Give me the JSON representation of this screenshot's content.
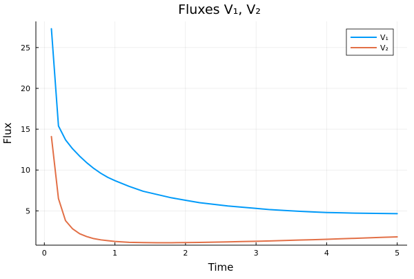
{
  "chart_data": {
    "type": "line",
    "title": "Fluxes V₁, V₂",
    "xlabel": "Time",
    "ylabel": "Flux",
    "xlim": [
      -0.12,
      5.14
    ],
    "ylim": [
      0.8,
      28.2
    ],
    "xticks": [
      0,
      1,
      2,
      3,
      4,
      5
    ],
    "yticks": [
      5,
      10,
      15,
      20,
      25
    ],
    "grid": true,
    "legend_position": "top-right",
    "series": [
      {
        "name": "V₁",
        "color": "#009af9",
        "x": [
          0.1,
          0.2,
          0.3,
          0.4,
          0.5,
          0.6,
          0.7,
          0.8,
          0.9,
          1.0,
          1.2,
          1.4,
          1.6,
          1.8,
          2.0,
          2.2,
          2.4,
          2.6,
          2.8,
          3.0,
          3.2,
          3.4,
          3.6,
          3.8,
          4.0,
          4.2,
          4.4,
          4.6,
          4.8,
          5.0
        ],
        "values": [
          27.3,
          15.4,
          13.7,
          12.6,
          11.7,
          10.9,
          10.2,
          9.6,
          9.1,
          8.7,
          8.0,
          7.4,
          7.0,
          6.6,
          6.3,
          6.0,
          5.8,
          5.6,
          5.45,
          5.3,
          5.15,
          5.05,
          4.95,
          4.87,
          4.8,
          4.76,
          4.72,
          4.7,
          4.68,
          4.66
        ]
      },
      {
        "name": "V₂",
        "color": "#e26f46",
        "x": [
          0.1,
          0.2,
          0.3,
          0.4,
          0.5,
          0.6,
          0.7,
          0.8,
          0.9,
          1.0,
          1.2,
          1.4,
          1.6,
          1.8,
          2.0,
          2.2,
          2.4,
          2.6,
          2.8,
          3.0,
          3.2,
          3.4,
          3.6,
          3.8,
          4.0,
          4.2,
          4.4,
          4.6,
          4.8,
          5.0
        ],
        "values": [
          14.1,
          6.5,
          3.8,
          2.8,
          2.2,
          1.85,
          1.6,
          1.45,
          1.35,
          1.25,
          1.15,
          1.12,
          1.1,
          1.1,
          1.12,
          1.14,
          1.17,
          1.2,
          1.24,
          1.28,
          1.32,
          1.37,
          1.42,
          1.47,
          1.52,
          1.58,
          1.64,
          1.7,
          1.76,
          1.82
        ]
      }
    ]
  }
}
